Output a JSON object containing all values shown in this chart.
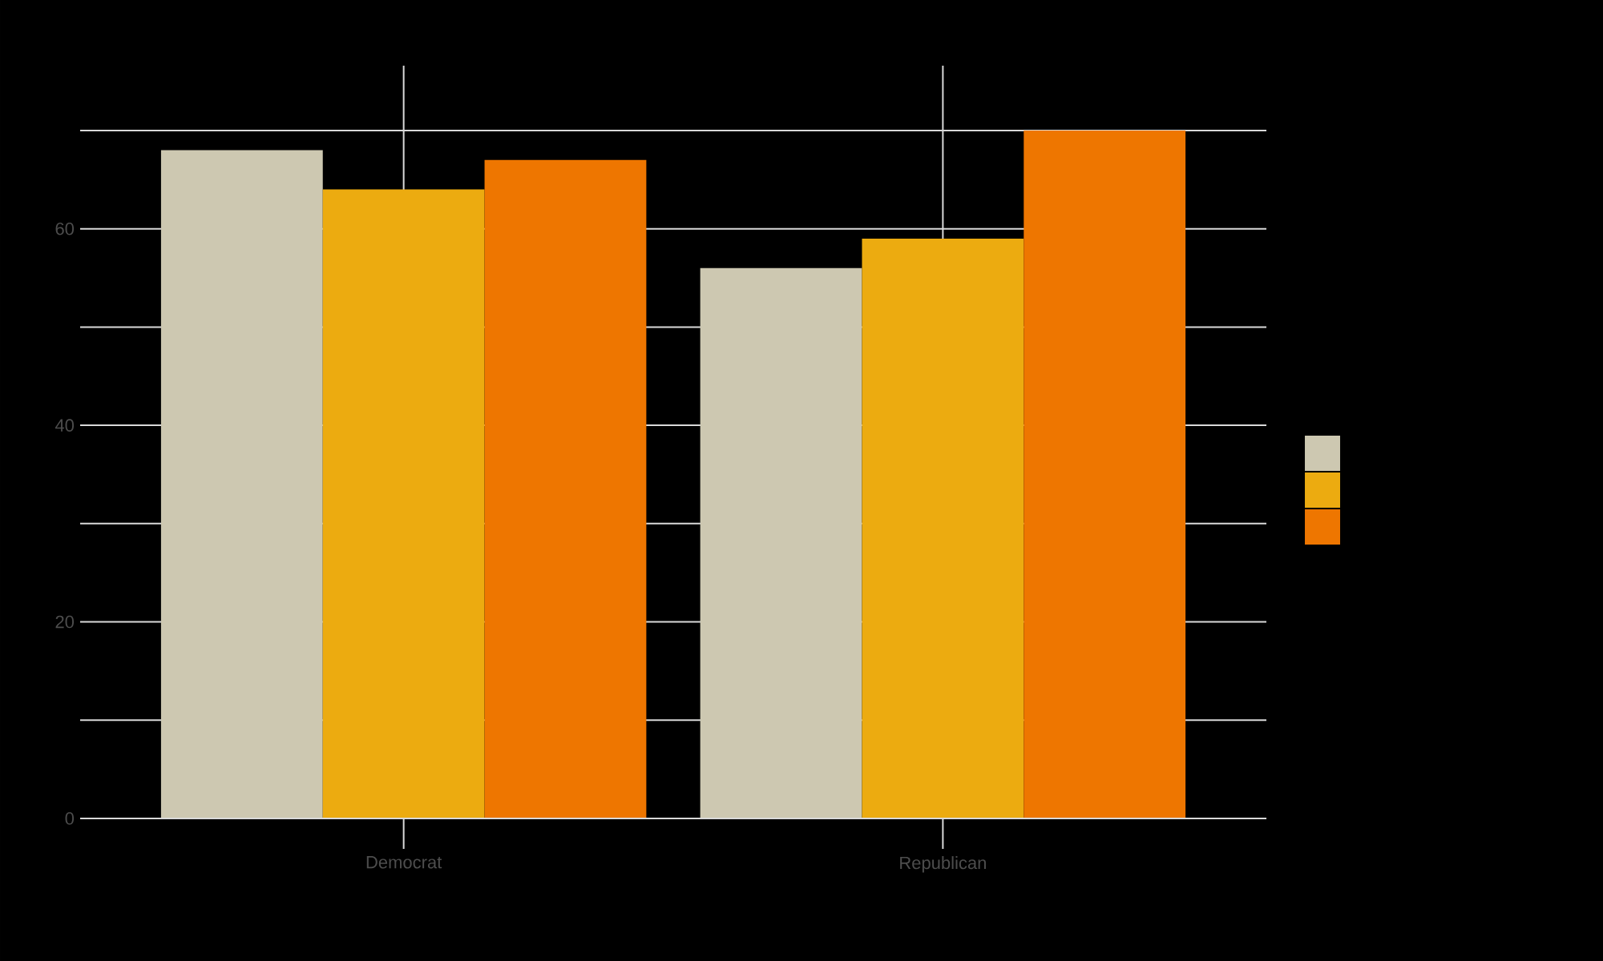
{
  "chart_data": {
    "type": "bar",
    "categories": [
      "Democrat",
      "Republican"
    ],
    "series": [
      {
        "color": "#cdc8b1",
        "values": [
          68,
          56
        ]
      },
      {
        "color": "#ecab10",
        "values": [
          64,
          59
        ]
      },
      {
        "color": "#ee7600",
        "values": [
          67,
          70
        ]
      }
    ],
    "ylim": [
      0,
      73.5
    ],
    "yticks": [
      0,
      {
        "value": 10,
        "label": null
      },
      20,
      {
        "value": 30,
        "label": null
      },
      40,
      {
        "value": 50,
        "label": null
      },
      60,
      {
        "value": 70,
        "label": null
      }
    ],
    "grid": true
  }
}
